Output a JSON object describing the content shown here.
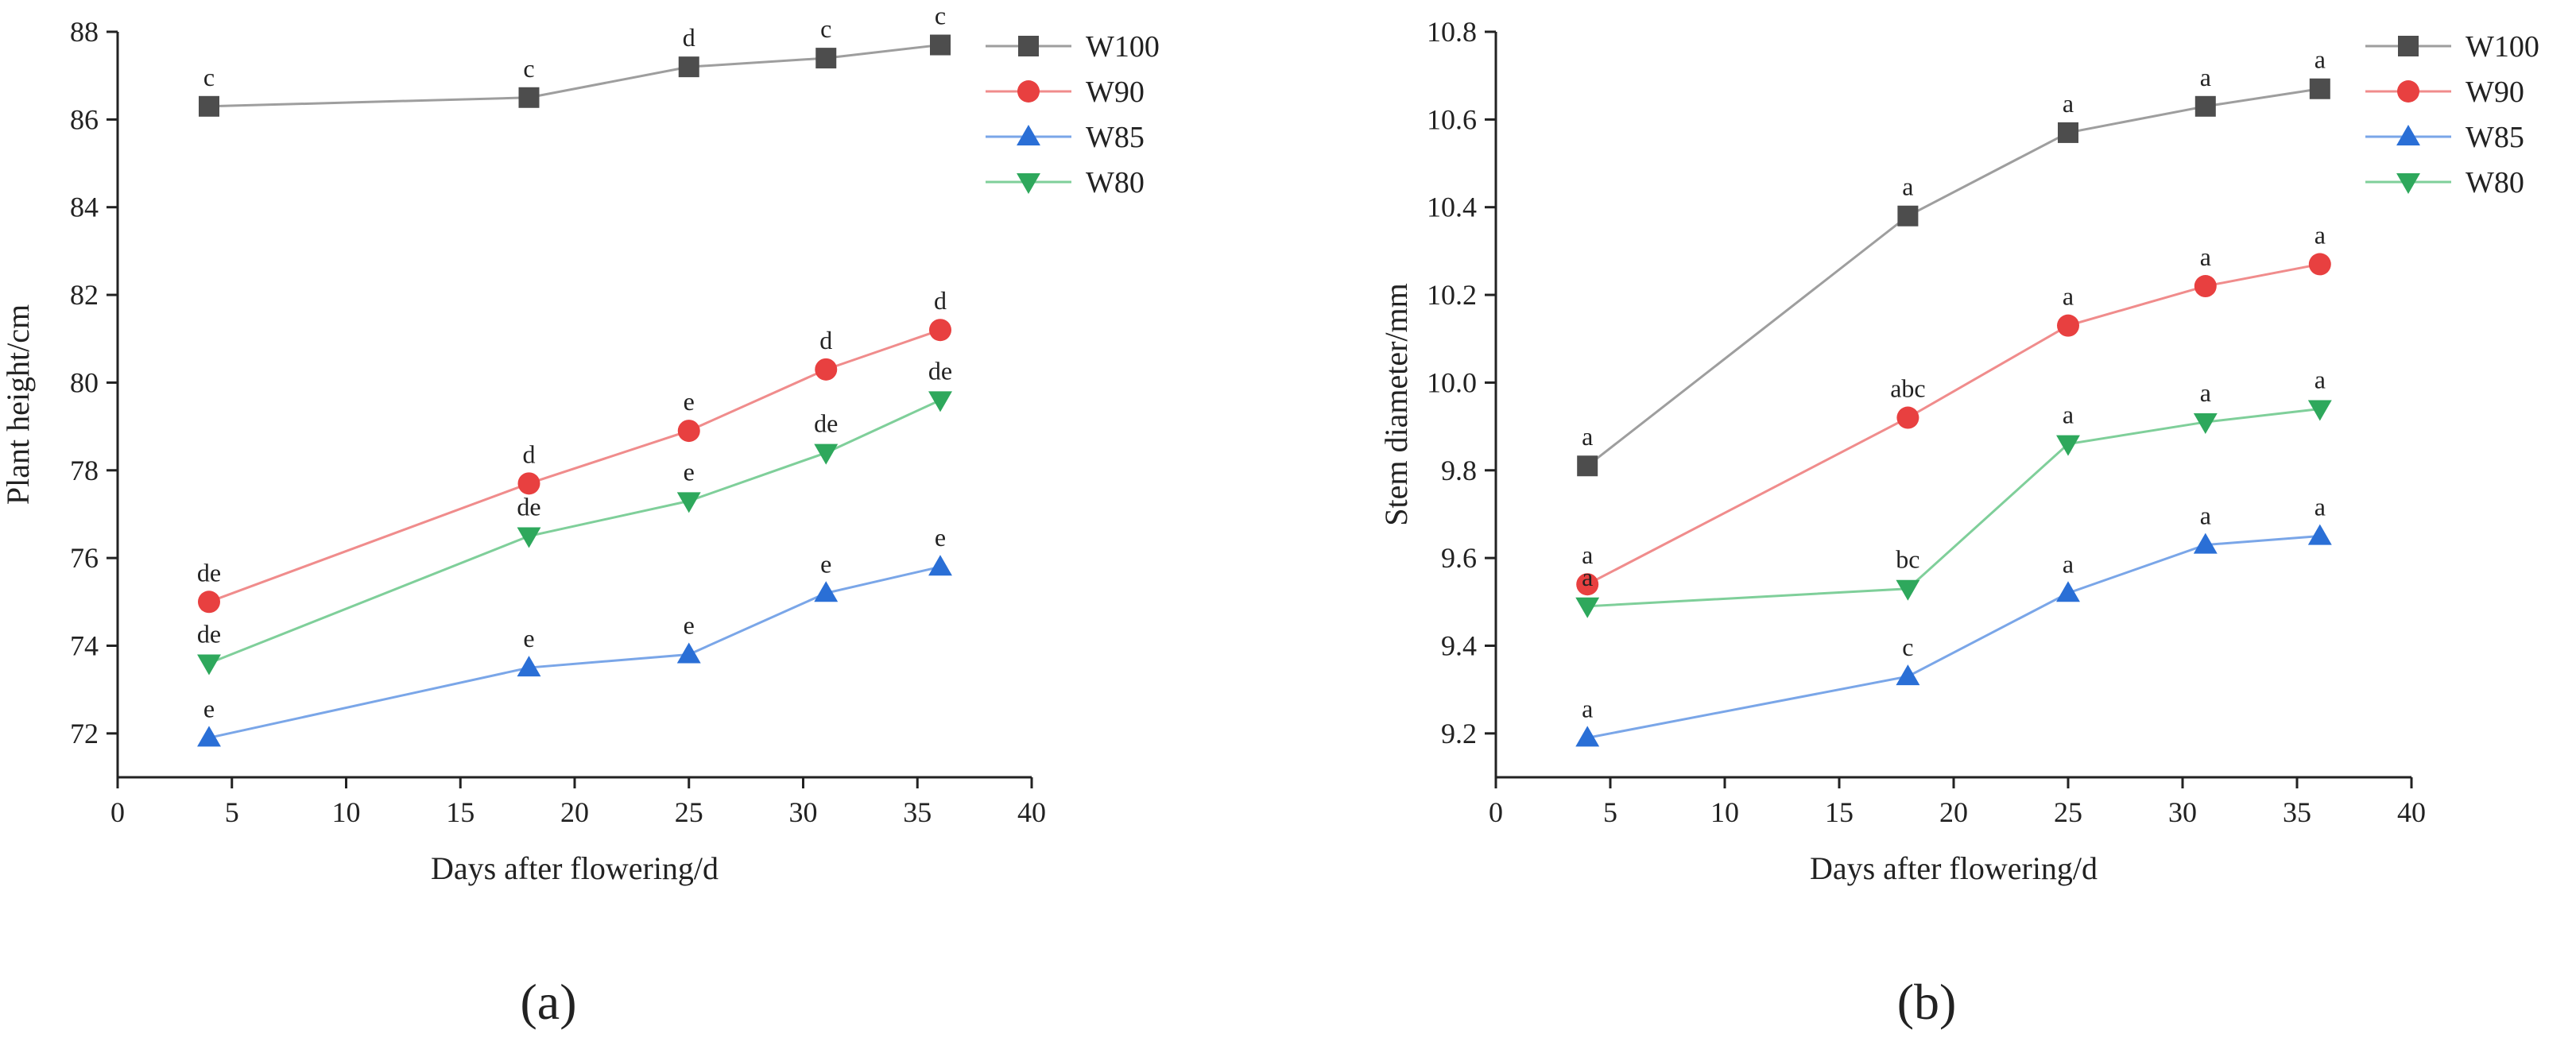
{
  "chart_data": [
    {
      "type": "line",
      "panel_label": "(a)",
      "xlabel": "Days after flowering/d",
      "ylabel": "Plant height/cm",
      "xlim": [
        0,
        40
      ],
      "ylim": [
        71,
        88
      ],
      "xticks": [
        0,
        5,
        10,
        15,
        20,
        25,
        30,
        35,
        40
      ],
      "yticks": [
        72,
        74,
        76,
        78,
        80,
        82,
        84,
        86,
        88
      ],
      "legend_position": "top-right",
      "x": [
        4,
        18,
        25,
        31,
        36
      ],
      "series": [
        {
          "name": "W100",
          "color": "#4d4d4d",
          "line_color": "#9e9e9e",
          "marker": "square",
          "values": [
            86.3,
            86.5,
            87.2,
            87.4,
            87.7
          ],
          "labels": [
            "c",
            "c",
            "d",
            "c",
            "c"
          ]
        },
        {
          "name": "W90",
          "color": "#e84040",
          "line_color": "#f08c8c",
          "marker": "circle",
          "values": [
            75.0,
            77.7,
            78.9,
            80.3,
            81.2
          ],
          "labels": [
            "de",
            "d",
            "e",
            "d",
            "d"
          ]
        },
        {
          "name": "W85",
          "color": "#2a6fd6",
          "line_color": "#7aa6e8",
          "marker": "triangle-up",
          "values": [
            71.9,
            73.5,
            73.8,
            75.2,
            75.8
          ],
          "labels": [
            "e",
            "e",
            "e",
            "e",
            "e"
          ]
        },
        {
          "name": "W80",
          "color": "#2ea85c",
          "line_color": "#7fcf9a",
          "marker": "triangle-down",
          "values": [
            73.6,
            76.5,
            77.3,
            78.4,
            79.6
          ],
          "labels": [
            "de",
            "de",
            "e",
            "de",
            "de"
          ]
        }
      ]
    },
    {
      "type": "line",
      "panel_label": "(b)",
      "xlabel": "Days after flowering/d",
      "ylabel": "Stem diameter/mm",
      "xlim": [
        0,
        40
      ],
      "ylim": [
        9.1,
        10.8
      ],
      "xticks": [
        0,
        5,
        10,
        15,
        20,
        25,
        30,
        35,
        40
      ],
      "yticks": [
        9.2,
        9.4,
        9.6,
        9.8,
        10.0,
        10.2,
        10.4,
        10.6,
        10.8
      ],
      "ytick_labels": [
        "9.2",
        "9.4",
        "9.6",
        "9.8",
        "10.0",
        "10.2",
        "10.4",
        "10.6",
        "10.8"
      ],
      "legend_position": "top-right",
      "x": [
        4,
        18,
        25,
        31,
        36
      ],
      "series": [
        {
          "name": "W100",
          "color": "#4d4d4d",
          "line_color": "#9e9e9e",
          "marker": "square",
          "values": [
            9.81,
            10.38,
            10.57,
            10.63,
            10.67
          ],
          "labels": [
            "a",
            "a",
            "a",
            "a",
            "a"
          ]
        },
        {
          "name": "W90",
          "color": "#e84040",
          "line_color": "#f08c8c",
          "marker": "circle",
          "values": [
            9.54,
            9.92,
            10.13,
            10.22,
            10.27
          ],
          "labels": [
            "a",
            "abc",
            "a",
            "a",
            "a"
          ]
        },
        {
          "name": "W85",
          "color": "#2a6fd6",
          "line_color": "#7aa6e8",
          "marker": "triangle-up",
          "values": [
            9.19,
            9.33,
            9.52,
            9.63,
            9.65
          ],
          "labels": [
            "a",
            "c",
            "a",
            "a",
            "a"
          ]
        },
        {
          "name": "W80",
          "color": "#2ea85c",
          "line_color": "#7fcf9a",
          "marker": "triangle-down",
          "values": [
            9.49,
            9.53,
            9.86,
            9.91,
            9.94
          ],
          "labels": [
            "a",
            "bc",
            "a",
            "a",
            "a"
          ]
        }
      ]
    }
  ]
}
